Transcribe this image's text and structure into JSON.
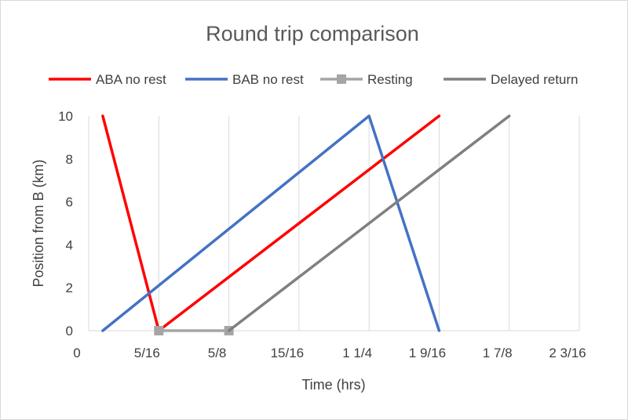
{
  "chart_data": {
    "type": "line",
    "title": "Round trip comparison",
    "xlabel": "Time (hrs)",
    "ylabel": "Position from B  (km)",
    "xlim": [
      0,
      2.1875
    ],
    "ylim": [
      0,
      10
    ],
    "x_ticks": [
      {
        "value": 0,
        "label": "0"
      },
      {
        "value": 0.3125,
        "label": "5/16"
      },
      {
        "value": 0.625,
        "label": "5/8"
      },
      {
        "value": 0.9375,
        "label": "15/16"
      },
      {
        "value": 1.25,
        "label": "1  1/4"
      },
      {
        "value": 1.5625,
        "label": "1  9/16"
      },
      {
        "value": 1.875,
        "label": "1  7/8"
      },
      {
        "value": 2.1875,
        "label": "2  3/16"
      }
    ],
    "y_ticks": [
      {
        "value": 0,
        "label": "0"
      },
      {
        "value": 2,
        "label": "2"
      },
      {
        "value": 4,
        "label": "4"
      },
      {
        "value": 6,
        "label": "6"
      },
      {
        "value": 8,
        "label": "8"
      },
      {
        "value": 10,
        "label": "10"
      }
    ],
    "grid": "vertical",
    "legend": "top",
    "series": [
      {
        "name": "ABA no rest",
        "color": "#ff0000",
        "marker": "none",
        "points": [
          [
            0.0625,
            10
          ],
          [
            0.3125,
            0
          ],
          [
            1.5625,
            10
          ]
        ]
      },
      {
        "name": "BAB no rest",
        "color": "#4472c4",
        "marker": "none",
        "points": [
          [
            0.0625,
            0
          ],
          [
            1.25,
            10
          ],
          [
            1.5625,
            0
          ]
        ]
      },
      {
        "name": "Resting",
        "color": "#a5a5a5",
        "marker": "square",
        "points": [
          [
            0.3125,
            0
          ],
          [
            0.625,
            0
          ]
        ]
      },
      {
        "name": "Delayed return",
        "color": "#808080",
        "marker": "none",
        "points": [
          [
            0.625,
            0
          ],
          [
            1.875,
            10
          ]
        ]
      }
    ]
  }
}
